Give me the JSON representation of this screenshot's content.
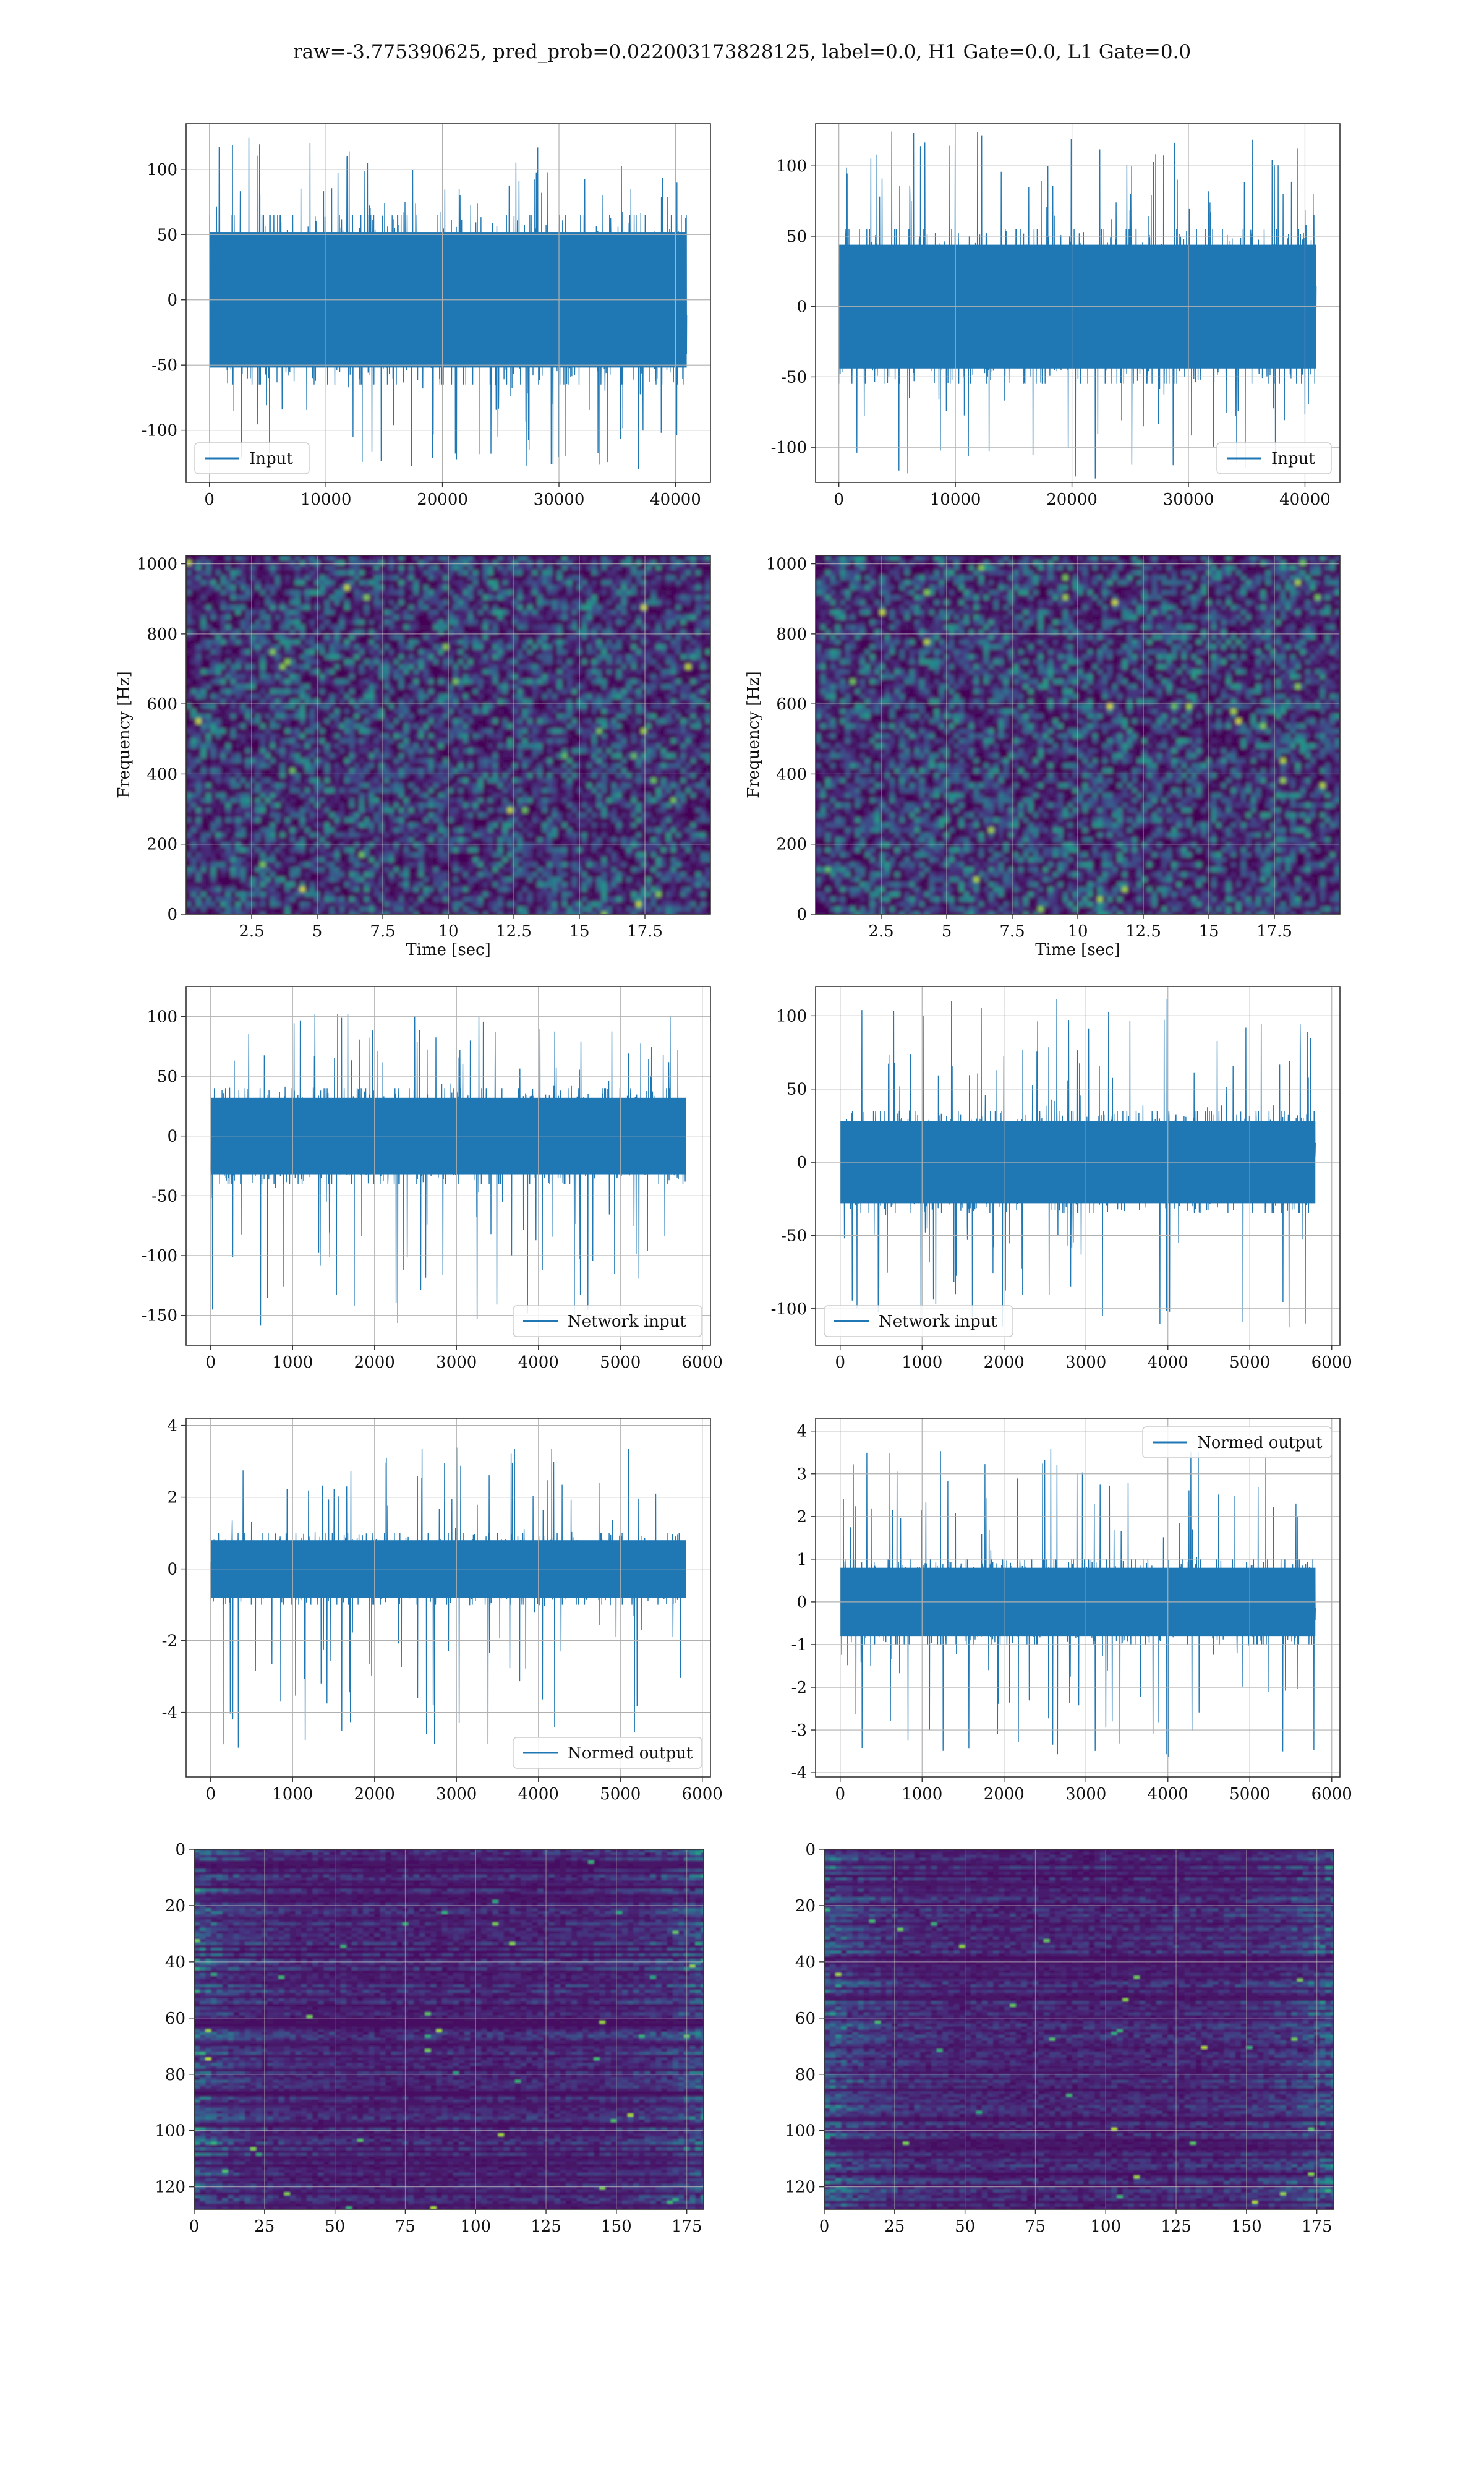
{
  "figure": {
    "title": "raw=-3.775390625, pred_prob=0.022003173828125, label=0.0, H1 Gate=0.0, L1 Gate=0.0"
  },
  "colors": {
    "line": "#1f77b4",
    "grid": "#b0b0b0",
    "viridis_dark": "#440154"
  },
  "chart_data": [
    {
      "id": "row1-left",
      "type": "line",
      "xlim": [
        -2000,
        43000
      ],
      "ylim": [
        -140,
        135
      ],
      "xticks": [
        0,
        10000,
        20000,
        30000,
        40000
      ],
      "yticks": [
        -100,
        -50,
        0,
        50,
        100
      ],
      "x_range": [
        0,
        40960
      ],
      "core_amplitude": 65,
      "spike_max": 125,
      "spike_min": -130,
      "legend": {
        "label": "Input",
        "position": "lower-left"
      },
      "grid": true
    },
    {
      "id": "row1-right",
      "type": "line",
      "xlim": [
        -2000,
        43000
      ],
      "ylim": [
        -125,
        130
      ],
      "xticks": [
        0,
        10000,
        20000,
        30000,
        40000
      ],
      "yticks": [
        -100,
        -50,
        0,
        50,
        100
      ],
      "x_range": [
        0,
        40960
      ],
      "core_amplitude": 55,
      "spike_max": 125,
      "spike_min": -125,
      "legend": {
        "label": "Input",
        "position": "lower-right"
      },
      "grid": true
    },
    {
      "id": "row2-left",
      "type": "heatmap",
      "xlim": [
        0,
        20
      ],
      "ylim": [
        0,
        1024
      ],
      "xticks": [
        2.5,
        5.0,
        7.5,
        10.0,
        12.5,
        15.0,
        17.5
      ],
      "yticks": [
        0,
        200,
        400,
        600,
        800,
        1000
      ],
      "xlabel": "Time [sec]",
      "ylabel": "Frequency [Hz]",
      "grid": true
    },
    {
      "id": "row2-right",
      "type": "heatmap",
      "xlim": [
        0,
        20
      ],
      "ylim": [
        0,
        1024
      ],
      "xticks": [
        2.5,
        5.0,
        7.5,
        10.0,
        12.5,
        15.0,
        17.5
      ],
      "yticks": [
        0,
        200,
        400,
        600,
        800,
        1000
      ],
      "xlabel": "Time [sec]",
      "ylabel": "Frequency [Hz]",
      "grid": true
    },
    {
      "id": "row3-left",
      "type": "line",
      "xlim": [
        -300,
        6100
      ],
      "ylim": [
        -175,
        125
      ],
      "xticks": [
        0,
        1000,
        2000,
        3000,
        4000,
        5000,
        6000
      ],
      "yticks": [
        -150,
        -100,
        -50,
        0,
        50,
        100
      ],
      "x_range": [
        0,
        5800
      ],
      "core_amplitude": 40,
      "spike_max": 110,
      "spike_min": -160,
      "legend": {
        "label": "Network input",
        "position": "lower-right"
      },
      "grid": true
    },
    {
      "id": "row3-right",
      "type": "line",
      "xlim": [
        -300,
        6100
      ],
      "ylim": [
        -125,
        120
      ],
      "xticks": [
        0,
        1000,
        2000,
        3000,
        4000,
        5000,
        6000
      ],
      "yticks": [
        -100,
        -50,
        0,
        50,
        100
      ],
      "x_range": [
        0,
        5800
      ],
      "core_amplitude": 35,
      "spike_max": 112,
      "spike_min": -115,
      "legend": {
        "label": "Network input",
        "position": "lower-left"
      },
      "grid": true
    },
    {
      "id": "row4-left",
      "type": "line",
      "xlim": [
        -300,
        6100
      ],
      "ylim": [
        -5.8,
        4.2
      ],
      "xticks": [
        0,
        1000,
        2000,
        3000,
        4000,
        5000,
        6000
      ],
      "yticks": [
        -4,
        -2,
        0,
        2,
        4
      ],
      "x_range": [
        0,
        5800
      ],
      "core_amplitude": 1.0,
      "spike_max": 3.6,
      "spike_min": -5.3,
      "legend": {
        "label": "Normed output",
        "position": "lower-right"
      },
      "grid": true
    },
    {
      "id": "row4-right",
      "type": "line",
      "xlim": [
        -300,
        6100
      ],
      "ylim": [
        -4.1,
        4.3
      ],
      "xticks": [
        0,
        1000,
        2000,
        3000,
        4000,
        5000,
        6000
      ],
      "yticks": [
        -4,
        -3,
        -2,
        -1,
        0,
        1,
        2,
        3,
        4
      ],
      "x_range": [
        0,
        5800
      ],
      "core_amplitude": 1.0,
      "spike_max": 3.6,
      "spike_min": -3.7,
      "legend": {
        "label": "Normed output",
        "position": "upper-right"
      },
      "grid": true
    },
    {
      "id": "row5-left",
      "type": "heatmap",
      "xlim": [
        0,
        181
      ],
      "ylim": [
        128,
        0
      ],
      "xticks": [
        0,
        25,
        50,
        75,
        100,
        125,
        150,
        175
      ],
      "yticks": [
        0,
        20,
        40,
        60,
        80,
        100,
        120
      ],
      "rows": 128,
      "cols": 181,
      "grid": true
    },
    {
      "id": "row5-right",
      "type": "heatmap",
      "xlim": [
        0,
        181
      ],
      "ylim": [
        128,
        0
      ],
      "xticks": [
        0,
        25,
        50,
        75,
        100,
        125,
        150,
        175
      ],
      "yticks": [
        0,
        20,
        40,
        60,
        80,
        100,
        120
      ],
      "rows": 128,
      "cols": 181,
      "grid": true
    }
  ]
}
